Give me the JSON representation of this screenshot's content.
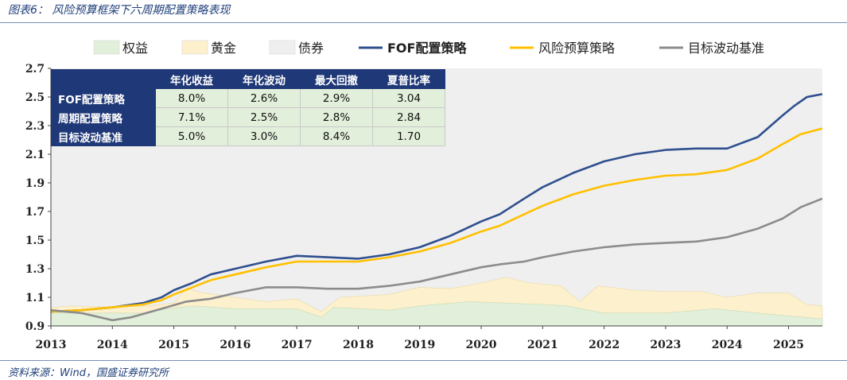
{
  "title": "图表6：  风险预算框架下六周期配置策略表现",
  "source": "资料来源：Wind，国盛证券研究所",
  "chart_data": {
    "type": "line",
    "title": "",
    "xlabel": "",
    "ylabel": "",
    "xlim": [
      2013,
      2025.55
    ],
    "ylim": [
      0.9,
      2.7
    ],
    "yticks": [
      "0.9",
      "1.1",
      "1.3",
      "1.5",
      "1.7",
      "1.9",
      "2.1",
      "2.3",
      "2.5",
      "2.7"
    ],
    "xticks": [
      "2013",
      "2014",
      "2015",
      "2016",
      "2017",
      "2018",
      "2019",
      "2020",
      "2021",
      "2022",
      "2023",
      "2024",
      "2025"
    ],
    "grid": false,
    "legend_position": "top",
    "legend": [
      {
        "label": "权益",
        "kind": "area",
        "color": "#e2efda"
      },
      {
        "label": "黄金",
        "kind": "area",
        "color": "#fdf0cd"
      },
      {
        "label": "债券",
        "kind": "area",
        "color": "#efefef"
      },
      {
        "label": "FOF配置策略",
        "kind": "line",
        "color": "#2f4f8f"
      },
      {
        "label": "风险预算策略",
        "kind": "line",
        "color": "#ffc000"
      },
      {
        "label": "目标波动基准",
        "kind": "line",
        "color": "#8c8c8c"
      }
    ],
    "allocation_areas": {
      "note_levels": "stacked allocation bands plotted on the same y axis",
      "equity_top": [
        [
          2013.0,
          0.99
        ],
        [
          2014.5,
          0.99
        ],
        [
          2014.9,
          1.02
        ],
        [
          2015.3,
          1.04
        ],
        [
          2016.0,
          1.02
        ],
        [
          2017.0,
          1.02
        ],
        [
          2017.4,
          0.96
        ],
        [
          2017.6,
          1.03
        ],
        [
          2018.5,
          1.01
        ],
        [
          2019.0,
          1.04
        ],
        [
          2019.8,
          1.07
        ],
        [
          2020.4,
          1.06
        ],
        [
          2021.0,
          1.05
        ],
        [
          2021.4,
          1.04
        ],
        [
          2022.0,
          0.99
        ],
        [
          2023.0,
          0.99
        ],
        [
          2023.8,
          1.02
        ],
        [
          2024.5,
          0.99
        ],
        [
          2025.0,
          0.97
        ],
        [
          2025.55,
          0.95
        ]
      ],
      "gold_top": [
        [
          2013.0,
          1.03
        ],
        [
          2013.4,
          1.04
        ],
        [
          2014.0,
          1.03
        ],
        [
          2014.6,
          1.04
        ],
        [
          2015.0,
          1.06
        ],
        [
          2015.2,
          1.16
        ],
        [
          2015.5,
          1.13
        ],
        [
          2016.0,
          1.1
        ],
        [
          2016.5,
          1.07
        ],
        [
          2017.0,
          1.09
        ],
        [
          2017.4,
          1.0
        ],
        [
          2017.7,
          1.1
        ],
        [
          2018.5,
          1.12
        ],
        [
          2019.0,
          1.17
        ],
        [
          2019.5,
          1.16
        ],
        [
          2020.0,
          1.2
        ],
        [
          2020.4,
          1.24
        ],
        [
          2020.8,
          1.2
        ],
        [
          2021.3,
          1.18
        ],
        [
          2021.6,
          1.07
        ],
        [
          2021.9,
          1.18
        ],
        [
          2022.5,
          1.15
        ],
        [
          2023.0,
          1.14
        ],
        [
          2023.6,
          1.14
        ],
        [
          2024.0,
          1.1
        ],
        [
          2024.5,
          1.13
        ],
        [
          2025.0,
          1.13
        ],
        [
          2025.3,
          1.05
        ],
        [
          2025.55,
          1.04
        ]
      ],
      "bond_top": 2.7
    },
    "series": [
      {
        "name": "FOF配置策略",
        "color": "#2f4f8f",
        "points": [
          [
            2013.0,
            1.0
          ],
          [
            2013.5,
            1.01
          ],
          [
            2014.0,
            1.03
          ],
          [
            2014.5,
            1.06
          ],
          [
            2014.8,
            1.1
          ],
          [
            2015.0,
            1.15
          ],
          [
            2015.3,
            1.2
          ],
          [
            2015.6,
            1.26
          ],
          [
            2016.0,
            1.3
          ],
          [
            2016.5,
            1.35
          ],
          [
            2017.0,
            1.39
          ],
          [
            2017.5,
            1.38
          ],
          [
            2018.0,
            1.37
          ],
          [
            2018.5,
            1.4
          ],
          [
            2019.0,
            1.45
          ],
          [
            2019.5,
            1.53
          ],
          [
            2020.0,
            1.63
          ],
          [
            2020.3,
            1.68
          ],
          [
            2020.7,
            1.79
          ],
          [
            2021.0,
            1.87
          ],
          [
            2021.5,
            1.97
          ],
          [
            2022.0,
            2.05
          ],
          [
            2022.5,
            2.1
          ],
          [
            2023.0,
            2.13
          ],
          [
            2023.5,
            2.14
          ],
          [
            2024.0,
            2.14
          ],
          [
            2024.5,
            2.22
          ],
          [
            2024.9,
            2.37
          ],
          [
            2025.1,
            2.44
          ],
          [
            2025.3,
            2.5
          ],
          [
            2025.55,
            2.52
          ]
        ]
      },
      {
        "name": "风险预算策略",
        "color": "#ffc000",
        "points": [
          [
            2013.0,
            1.0
          ],
          [
            2013.5,
            1.01
          ],
          [
            2014.0,
            1.03
          ],
          [
            2014.5,
            1.05
          ],
          [
            2014.8,
            1.08
          ],
          [
            2015.0,
            1.12
          ],
          [
            2015.3,
            1.17
          ],
          [
            2015.6,
            1.22
          ],
          [
            2016.0,
            1.26
          ],
          [
            2016.5,
            1.31
          ],
          [
            2017.0,
            1.35
          ],
          [
            2017.5,
            1.35
          ],
          [
            2018.0,
            1.35
          ],
          [
            2018.5,
            1.38
          ],
          [
            2019.0,
            1.42
          ],
          [
            2019.5,
            1.48
          ],
          [
            2020.0,
            1.56
          ],
          [
            2020.3,
            1.6
          ],
          [
            2020.7,
            1.68
          ],
          [
            2021.0,
            1.74
          ],
          [
            2021.5,
            1.82
          ],
          [
            2022.0,
            1.88
          ],
          [
            2022.5,
            1.92
          ],
          [
            2023.0,
            1.95
          ],
          [
            2023.5,
            1.96
          ],
          [
            2024.0,
            1.99
          ],
          [
            2024.5,
            2.07
          ],
          [
            2024.9,
            2.17
          ],
          [
            2025.2,
            2.24
          ],
          [
            2025.55,
            2.28
          ]
        ]
      },
      {
        "name": "目标波动基准",
        "color": "#8c8c8c",
        "points": [
          [
            2013.0,
            1.01
          ],
          [
            2013.5,
            0.99
          ],
          [
            2014.0,
            0.94
          ],
          [
            2014.3,
            0.96
          ],
          [
            2014.8,
            1.02
          ],
          [
            2015.2,
            1.07
          ],
          [
            2015.6,
            1.09
          ],
          [
            2016.0,
            1.13
          ],
          [
            2016.5,
            1.17
          ],
          [
            2017.0,
            1.17
          ],
          [
            2017.5,
            1.16
          ],
          [
            2018.0,
            1.16
          ],
          [
            2018.5,
            1.18
          ],
          [
            2019.0,
            1.21
          ],
          [
            2019.5,
            1.26
          ],
          [
            2020.0,
            1.31
          ],
          [
            2020.3,
            1.33
          ],
          [
            2020.7,
            1.35
          ],
          [
            2021.0,
            1.38
          ],
          [
            2021.5,
            1.42
          ],
          [
            2022.0,
            1.45
          ],
          [
            2022.5,
            1.47
          ],
          [
            2023.0,
            1.48
          ],
          [
            2023.5,
            1.49
          ],
          [
            2024.0,
            1.52
          ],
          [
            2024.5,
            1.58
          ],
          [
            2024.9,
            1.65
          ],
          [
            2025.2,
            1.73
          ],
          [
            2025.55,
            1.79
          ]
        ]
      }
    ],
    "stats_table": {
      "columns": [
        "年化收益",
        "年化波动",
        "最大回撤",
        "夏普比率"
      ],
      "rows": [
        {
          "name": "FOF配置策略",
          "values": [
            "8.0%",
            "2.6%",
            "2.9%",
            "3.04"
          ]
        },
        {
          "name": "周期配置策略",
          "values": [
            "7.1%",
            "2.5%",
            "2.8%",
            "2.84"
          ]
        },
        {
          "name": "目标波动基准",
          "values": [
            "5.0%",
            "3.0%",
            "8.4%",
            "1.70"
          ]
        }
      ]
    }
  }
}
